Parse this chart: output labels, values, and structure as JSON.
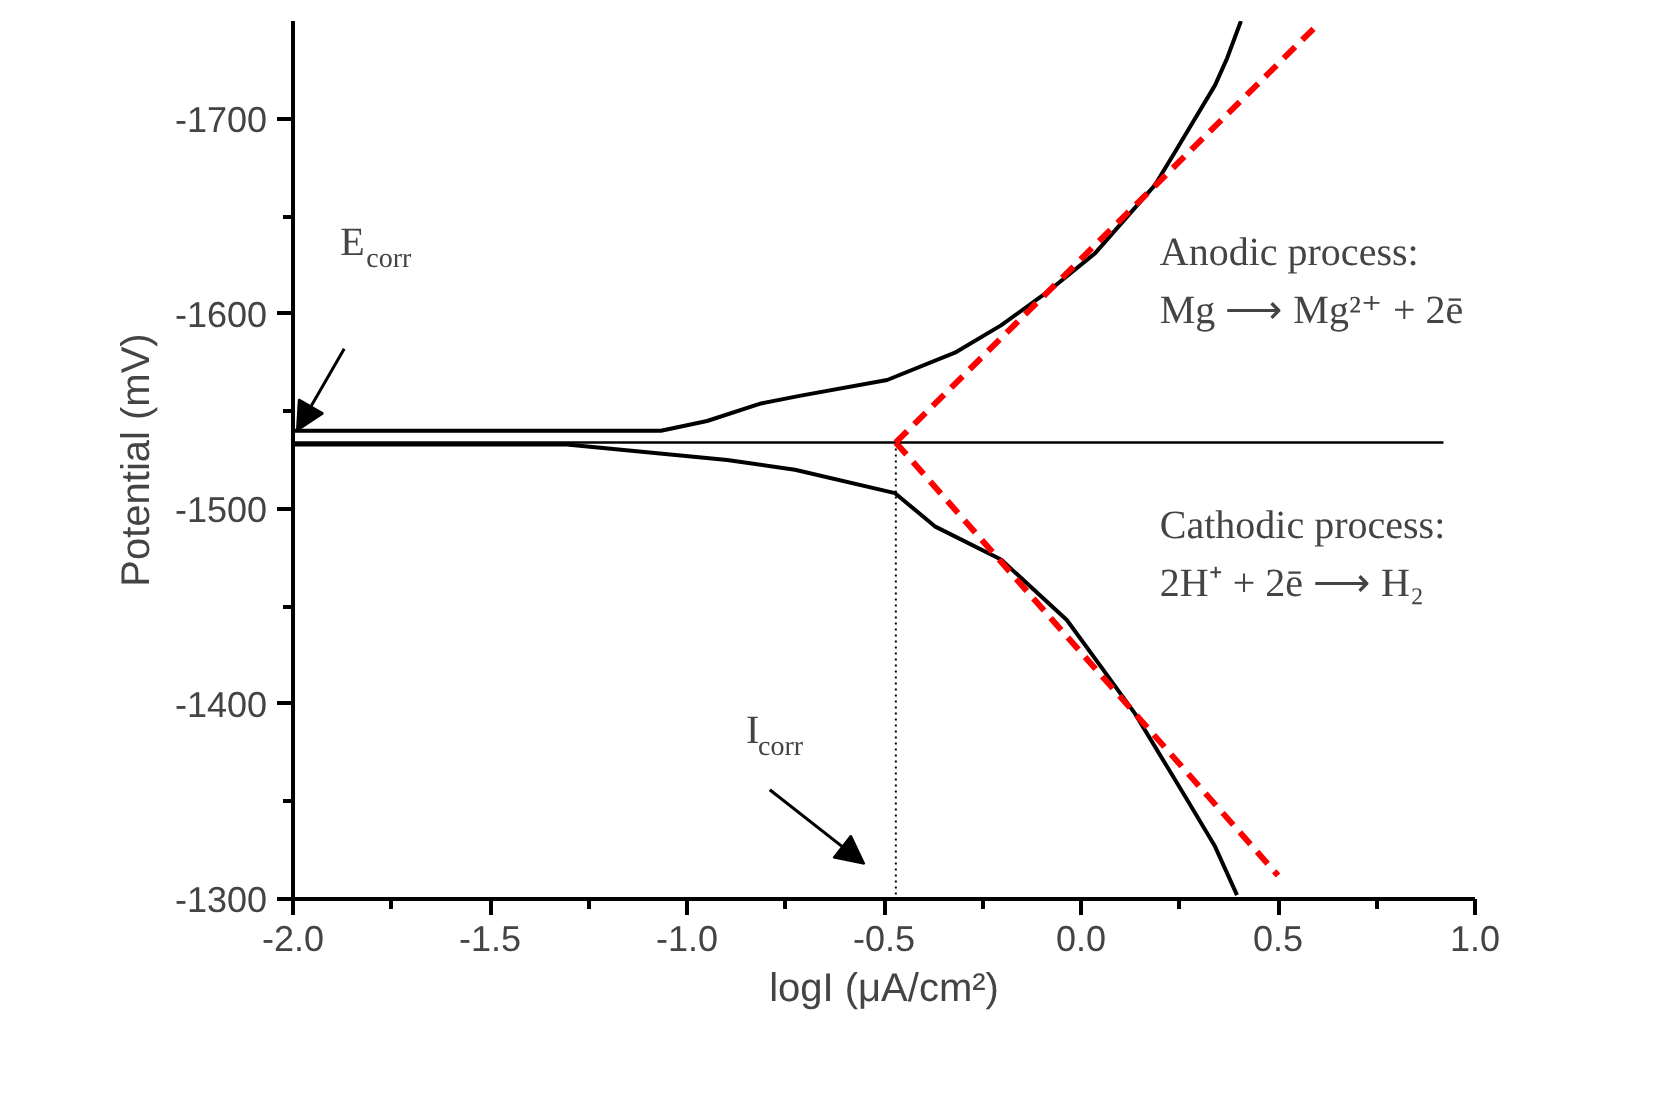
{
  "chart_data": {
    "type": "line",
    "xlabel": "logI (μA/cm²)",
    "ylabel": "Potential (mV)",
    "xlim": [
      -2.0,
      1.0
    ],
    "ylim": [
      -1300,
      -1750
    ],
    "xticks": [
      {
        "value": -2.0,
        "label": "-2.0"
      },
      {
        "value": -1.75,
        "label": null
      },
      {
        "value": -1.5,
        "label": "-1.5"
      },
      {
        "value": -1.25,
        "label": null
      },
      {
        "value": -1.0,
        "label": "-1.0"
      },
      {
        "value": -0.75,
        "label": null
      },
      {
        "value": -0.5,
        "label": "-0.5"
      },
      {
        "value": -0.25,
        "label": null
      },
      {
        "value": 0.0,
        "label": "0.0"
      },
      {
        "value": 0.25,
        "label": null
      },
      {
        "value": 0.5,
        "label": "0.5"
      },
      {
        "value": 0.75,
        "label": null
      },
      {
        "value": 1.0,
        "label": "1.0"
      }
    ],
    "yticks": [
      -1300,
      {
        "value": -1350,
        "label": null
      },
      -1400,
      {
        "value": -1450,
        "label": null
      },
      -1500,
      {
        "value": -1550,
        "label": null
      },
      -1600,
      {
        "value": -1650,
        "label": null
      },
      -1700
    ],
    "grid": false,
    "marker": "none",
    "series": [
      {
        "color": "#000000",
        "line_style": "solid",
        "x": [
          -2.0,
          -1.066,
          -0.949,
          -0.812,
          -0.711,
          -0.492,
          -0.32,
          -0.203,
          -0.086,
          0.036,
          0.188,
          0.239,
          0.34,
          0.371,
          0.406
        ],
        "values": [
          -1540,
          -1540,
          -1545,
          -1554,
          -1558,
          -1566,
          -1580,
          -1594,
          -1611,
          -1631,
          -1666,
          -1683,
          -1717,
          -1731,
          -1750
        ]
      },
      {
        "color": "#000000",
        "line_style": "solid",
        "x": [
          -2.0,
          -1.305,
          -0.898,
          -0.726,
          -0.472,
          -0.371,
          -0.203,
          -0.036,
          0.051,
          0.137,
          0.218,
          0.269,
          0.34,
          0.396
        ],
        "values": [
          -1533,
          -1533,
          -1525,
          -1520,
          -1508,
          -1491,
          -1474,
          -1443,
          -1419,
          -1395,
          -1368,
          -1351,
          -1327,
          -1302
        ]
      },
      {
        "color": "#000000",
        "line_style": "solid",
        "x": [
          -2.0,
          0.92
        ],
        "values": [
          -1534,
          -1534
        ]
      },
      {
        "color": "#000000",
        "line_style": "dotted",
        "x": [
          -0.47,
          -0.47
        ],
        "values": [
          -1534,
          -1300
        ]
      },
      {
        "color": "#ff0000",
        "line_style": "dashed",
        "x": [
          -0.47,
          0.59
        ],
        "values": [
          -1534,
          -1746
        ]
      },
      {
        "color": "#ff0000",
        "line_style": "dashed",
        "x": [
          -0.47,
          0.5
        ],
        "values": [
          -1534,
          -1312
        ]
      }
    ],
    "annotations": [
      "E$_{corr}$",
      "I$_{corr}$",
      "Anodic process:",
      "Mg ⟶ Mg²⁺ + 2ē",
      "Cathodic process:",
      "2H⁺ + 2ē ⟶ H₂"
    ]
  }
}
